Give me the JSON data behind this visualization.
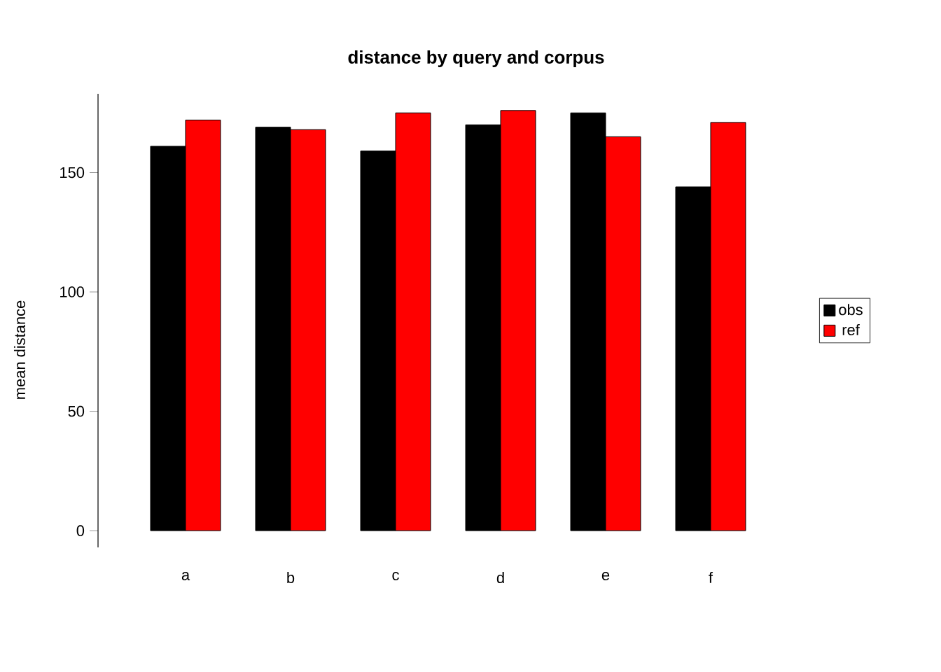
{
  "chart_data": {
    "type": "bar",
    "title": "distance by query and corpus",
    "ylabel": "mean distance",
    "categories": [
      "a",
      "b",
      "c",
      "d",
      "e",
      "f"
    ],
    "series": [
      {
        "name": "obs",
        "color": "#000000",
        "values": [
          161,
          169,
          159,
          170,
          175,
          144
        ]
      },
      {
        "name": "ref",
        "color": "#ff0000",
        "values": [
          172,
          168,
          175,
          176,
          165,
          171
        ]
      }
    ],
    "ylim": [
      -7,
      183
    ],
    "yticks": [
      0,
      50,
      100,
      150
    ],
    "grid": false,
    "legend": "right"
  }
}
